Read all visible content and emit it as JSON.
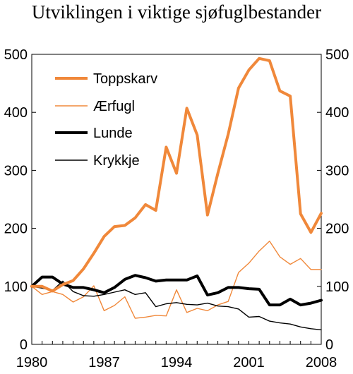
{
  "chart_data": {
    "type": "line",
    "title": "Utviklingen i viktige sjøfuglbestander",
    "xlabel": "",
    "ylabel": "",
    "xlim": [
      1980,
      2008
    ],
    "ylim": [
      0,
      500
    ],
    "x_ticks": [
      "1980",
      "1987",
      "1994",
      "2001",
      "2008"
    ],
    "y_ticks": [
      "0",
      "100",
      "200",
      "300",
      "400",
      "500"
    ],
    "grid": false,
    "legend_position": "top-left",
    "series": [
      {
        "name": "Toppskarv",
        "color": "#F0883A",
        "width": "thick",
        "x": [
          1980,
          1981,
          1982,
          1983,
          1984,
          1985,
          1986,
          1987,
          1988,
          1989,
          1990,
          1991,
          1992,
          1993,
          1994,
          1995,
          1996,
          1997,
          1998,
          1999,
          2000,
          2001,
          2002,
          2003,
          2004,
          2005,
          2006,
          2007,
          2008
        ],
        "y": [
          100,
          100,
          92,
          103,
          110,
          130,
          157,
          186,
          203,
          205,
          218,
          241,
          231,
          340,
          295,
          407,
          361,
          223,
          295,
          362,
          442,
          473,
          493,
          489,
          437,
          428,
          225,
          193,
          226
        ]
      },
      {
        "name": "Ærfugl",
        "color": "#F0883A",
        "width": "thin",
        "x": [
          1980,
          1981,
          1982,
          1983,
          1984,
          1985,
          1986,
          1987,
          1988,
          1989,
          1990,
          1991,
          1992,
          1993,
          1994,
          1995,
          1996,
          1997,
          1998,
          1999,
          2000,
          2001,
          2002,
          2003,
          2004,
          2005,
          2006,
          2007,
          2008
        ],
        "y": [
          100,
          86,
          91,
          86,
          73,
          82,
          101,
          58,
          67,
          82,
          45,
          47,
          50,
          49,
          94,
          55,
          62,
          58,
          68,
          74,
          124,
          140,
          161,
          178,
          151,
          138,
          148,
          129,
          129
        ]
      },
      {
        "name": "Lunde",
        "color": "#000000",
        "width": "thick",
        "x": [
          1980,
          1981,
          1982,
          1983,
          1984,
          1985,
          1986,
          1987,
          1988,
          1989,
          1990,
          1991,
          1992,
          1993,
          1994,
          1995,
          1996,
          1997,
          1998,
          1999,
          2000,
          2001,
          2002,
          2003,
          2004,
          2005,
          2006,
          2007,
          2008
        ],
        "y": [
          100,
          116,
          116,
          104,
          98,
          98,
          94,
          89,
          98,
          112,
          119,
          115,
          109,
          111,
          111,
          111,
          118,
          85,
          89,
          98,
          98,
          96,
          95,
          68,
          68,
          78,
          68,
          71,
          76
        ]
      },
      {
        "name": "Krykkje",
        "color": "#000000",
        "width": "thin",
        "x": [
          1980,
          1981,
          1982,
          1983,
          1984,
          1985,
          1986,
          1987,
          1988,
          1989,
          1990,
          1991,
          1992,
          1993,
          1994,
          1995,
          1996,
          1997,
          1998,
          1999,
          2000,
          2001,
          2002,
          2003,
          2004,
          2005,
          2006,
          2007,
          2008
        ],
        "y": [
          100,
          97,
          93,
          109,
          91,
          84,
          83,
          86,
          90,
          94,
          86,
          89,
          65,
          70,
          72,
          69,
          68,
          71,
          66,
          65,
          61,
          47,
          48,
          40,
          37,
          35,
          30,
          27,
          25
        ]
      }
    ]
  }
}
